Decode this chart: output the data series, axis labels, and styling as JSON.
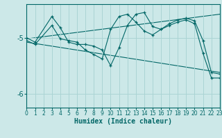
{
  "xlabel": "Humidex (Indice chaleur)",
  "background_color": "#cce8e8",
  "grid_color": "#aad4d4",
  "line_color": "#006666",
  "xlim": [
    0,
    23
  ],
  "ylim": [
    -6.25,
    -4.4
  ],
  "yticks": [
    -6,
    -5
  ],
  "xticks": [
    0,
    1,
    2,
    3,
    4,
    5,
    6,
    7,
    8,
    9,
    10,
    11,
    12,
    13,
    14,
    15,
    16,
    17,
    18,
    19,
    20,
    21,
    22,
    23
  ],
  "series1_x": [
    0,
    1,
    3,
    4,
    5,
    6,
    7,
    8,
    9,
    10,
    11,
    12,
    13,
    14,
    15,
    16,
    17,
    18,
    19,
    20,
    21,
    22,
    23
  ],
  "series1_y": [
    -5.0,
    -5.08,
    -4.62,
    -4.82,
    -5.08,
    -5.12,
    -5.12,
    -5.15,
    -5.22,
    -5.5,
    -5.18,
    -4.78,
    -4.58,
    -4.55,
    -4.8,
    -4.85,
    -4.75,
    -4.68,
    -4.65,
    -4.7,
    -5.05,
    -5.62,
    -5.65
  ],
  "series2_x": [
    0,
    1,
    3,
    4,
    5,
    6,
    7,
    8,
    9,
    10,
    11,
    12,
    13,
    14,
    15,
    16,
    17,
    18,
    19,
    20,
    21,
    22,
    23
  ],
  "series2_y": [
    -5.05,
    -5.12,
    -4.78,
    -5.02,
    -5.05,
    -5.08,
    -5.22,
    -5.3,
    -5.38,
    -4.85,
    -4.62,
    -4.58,
    -4.72,
    -4.88,
    -4.95,
    -4.85,
    -4.78,
    -4.72,
    -4.68,
    -4.75,
    -5.28,
    -5.72,
    -5.72
  ],
  "trend1_x": [
    0,
    23
  ],
  "trend1_y": [
    -5.02,
    -4.58
  ],
  "trend2_x": [
    0,
    23
  ],
  "trend2_y": [
    -5.08,
    -5.62
  ]
}
